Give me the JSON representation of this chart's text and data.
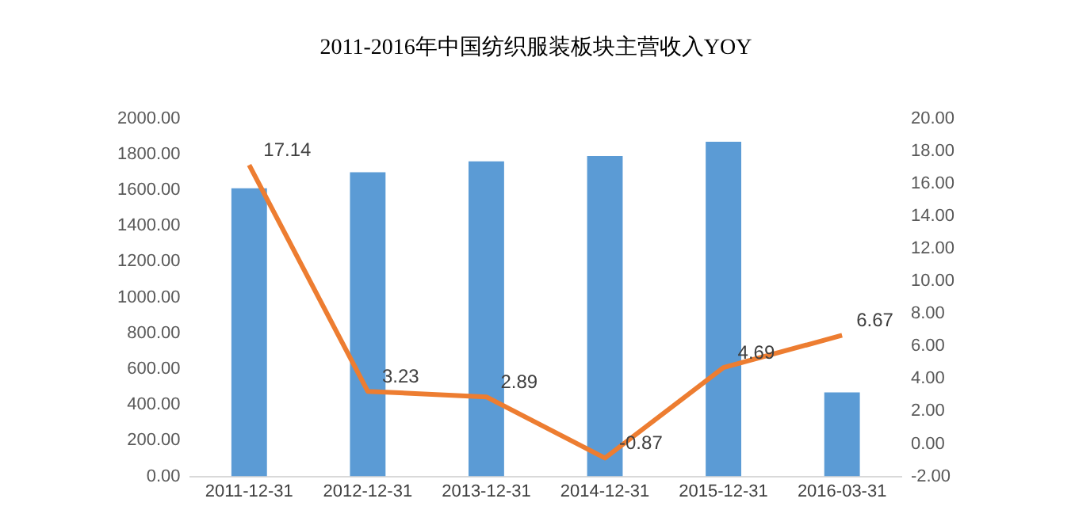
{
  "chart_data": {
    "type": "bar",
    "title": "2011-2016年中国纺织服装板块主营收入YOY",
    "categories": [
      "2011-12-31",
      "2012-12-31",
      "2013-12-31",
      "2014-12-31",
      "2015-12-31",
      "2016-03-31"
    ],
    "series": [
      {
        "color": "#5b9bd5",
        "values": [
          1610,
          1700,
          1760,
          1790,
          1870,
          470
        ]
      },
      {
        "type": "line",
        "axis": "y2",
        "color": "#ed7d31",
        "values": [
          17.14,
          3.23,
          2.89,
          -0.87,
          4.69,
          6.67
        ],
        "value_labels": [
          "17.14",
          "3.23",
          "2.89",
          "-0.87",
          "4.69",
          "6.67"
        ],
        "marker": "none"
      }
    ],
    "ylim": [
      0,
      2000
    ],
    "yticks": [
      {
        "value": 0,
        "label": "0.00"
      },
      {
        "value": 200,
        "label": "200.00"
      },
      {
        "value": 400,
        "label": "400.00"
      },
      {
        "value": 600,
        "label": "600.00"
      },
      {
        "value": 800,
        "label": "800.00"
      },
      {
        "value": 1000,
        "label": "1000.00"
      },
      {
        "value": 1200,
        "label": "1200.00"
      },
      {
        "value": 1400,
        "label": "1400.00"
      },
      {
        "value": 1600,
        "label": "1600.00"
      },
      {
        "value": 1800,
        "label": "1800.00"
      },
      {
        "value": 2000,
        "label": "2000.00"
      }
    ],
    "y2lim": [
      -2,
      20
    ],
    "y2ticks": [
      {
        "value": -2,
        "label": "-2.00"
      },
      {
        "value": 0,
        "label": "0.00"
      },
      {
        "value": 2,
        "label": "2.00"
      },
      {
        "value": 4,
        "label": "4.00"
      },
      {
        "value": 6,
        "label": "6.00"
      },
      {
        "value": 8,
        "label": "8.00"
      },
      {
        "value": 10,
        "label": "10.00"
      },
      {
        "value": 12,
        "label": "12.00"
      },
      {
        "value": 14,
        "label": "14.00"
      },
      {
        "value": 16,
        "label": "16.00"
      },
      {
        "value": 18,
        "label": "18.00"
      },
      {
        "value": 20,
        "label": "20.00"
      }
    ],
    "grid": false,
    "legend": false
  }
}
